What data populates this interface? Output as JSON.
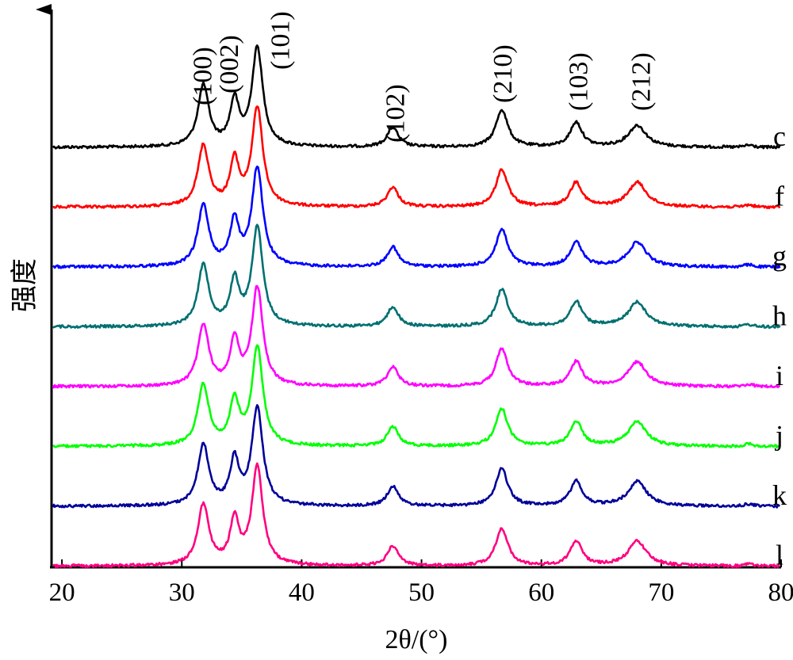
{
  "chart_data": {
    "type": "line",
    "xlabel": "2θ/(°)",
    "ylabel": "强度",
    "xlim": [
      19,
      80
    ],
    "xticks": [
      20,
      30,
      40,
      50,
      60,
      70,
      80
    ],
    "grid": false,
    "y_tick_labels": false,
    "peak_labels": [
      {
        "label": "(100)",
        "x": 31.8
      },
      {
        "label": "(002)",
        "x": 34.4
      },
      {
        "label": "(101)",
        "x": 36.3
      },
      {
        "label": "(102)",
        "x": 47.6
      },
      {
        "label": "(210)",
        "x": 56.7
      },
      {
        "label": "(103)",
        "x": 62.9
      },
      {
        "label": "(212)",
        "x": 68.0
      }
    ],
    "peaks": [
      {
        "x": 31.8,
        "width": 0.55
      },
      {
        "x": 34.4,
        "width": 0.45
      },
      {
        "x": 36.3,
        "width": 0.55
      },
      {
        "x": 47.6,
        "width": 0.55
      },
      {
        "x": 56.7,
        "width": 0.6
      },
      {
        "x": 62.9,
        "width": 0.6
      },
      {
        "x": 68.0,
        "width": 0.9
      }
    ],
    "series": [
      {
        "name": "c",
        "color": "#000000",
        "intensities": [
          0.62,
          0.45,
          1.0,
          0.2,
          0.38,
          0.25,
          0.22
        ]
      },
      {
        "name": "f",
        "color": "#ff0000",
        "intensities": [
          0.62,
          0.45,
          1.0,
          0.2,
          0.38,
          0.25,
          0.25
        ]
      },
      {
        "name": "g",
        "color": "#0000ff",
        "intensities": [
          0.62,
          0.45,
          1.0,
          0.2,
          0.38,
          0.25,
          0.25
        ]
      },
      {
        "name": "h",
        "color": "#007070",
        "intensities": [
          0.62,
          0.45,
          1.0,
          0.2,
          0.38,
          0.25,
          0.25
        ]
      },
      {
        "name": "i",
        "color": "#ff00ff",
        "intensities": [
          0.62,
          0.45,
          1.0,
          0.2,
          0.38,
          0.25,
          0.25
        ]
      },
      {
        "name": "j",
        "color": "#00ff00",
        "intensities": [
          0.62,
          0.45,
          1.0,
          0.2,
          0.38,
          0.25,
          0.25
        ]
      },
      {
        "name": "k",
        "color": "#000099",
        "intensities": [
          0.62,
          0.45,
          1.0,
          0.2,
          0.38,
          0.25,
          0.25
        ]
      },
      {
        "name": "l",
        "color": "#ff0080",
        "intensities": [
          0.62,
          0.45,
          1.0,
          0.2,
          0.38,
          0.25,
          0.25
        ]
      }
    ]
  }
}
